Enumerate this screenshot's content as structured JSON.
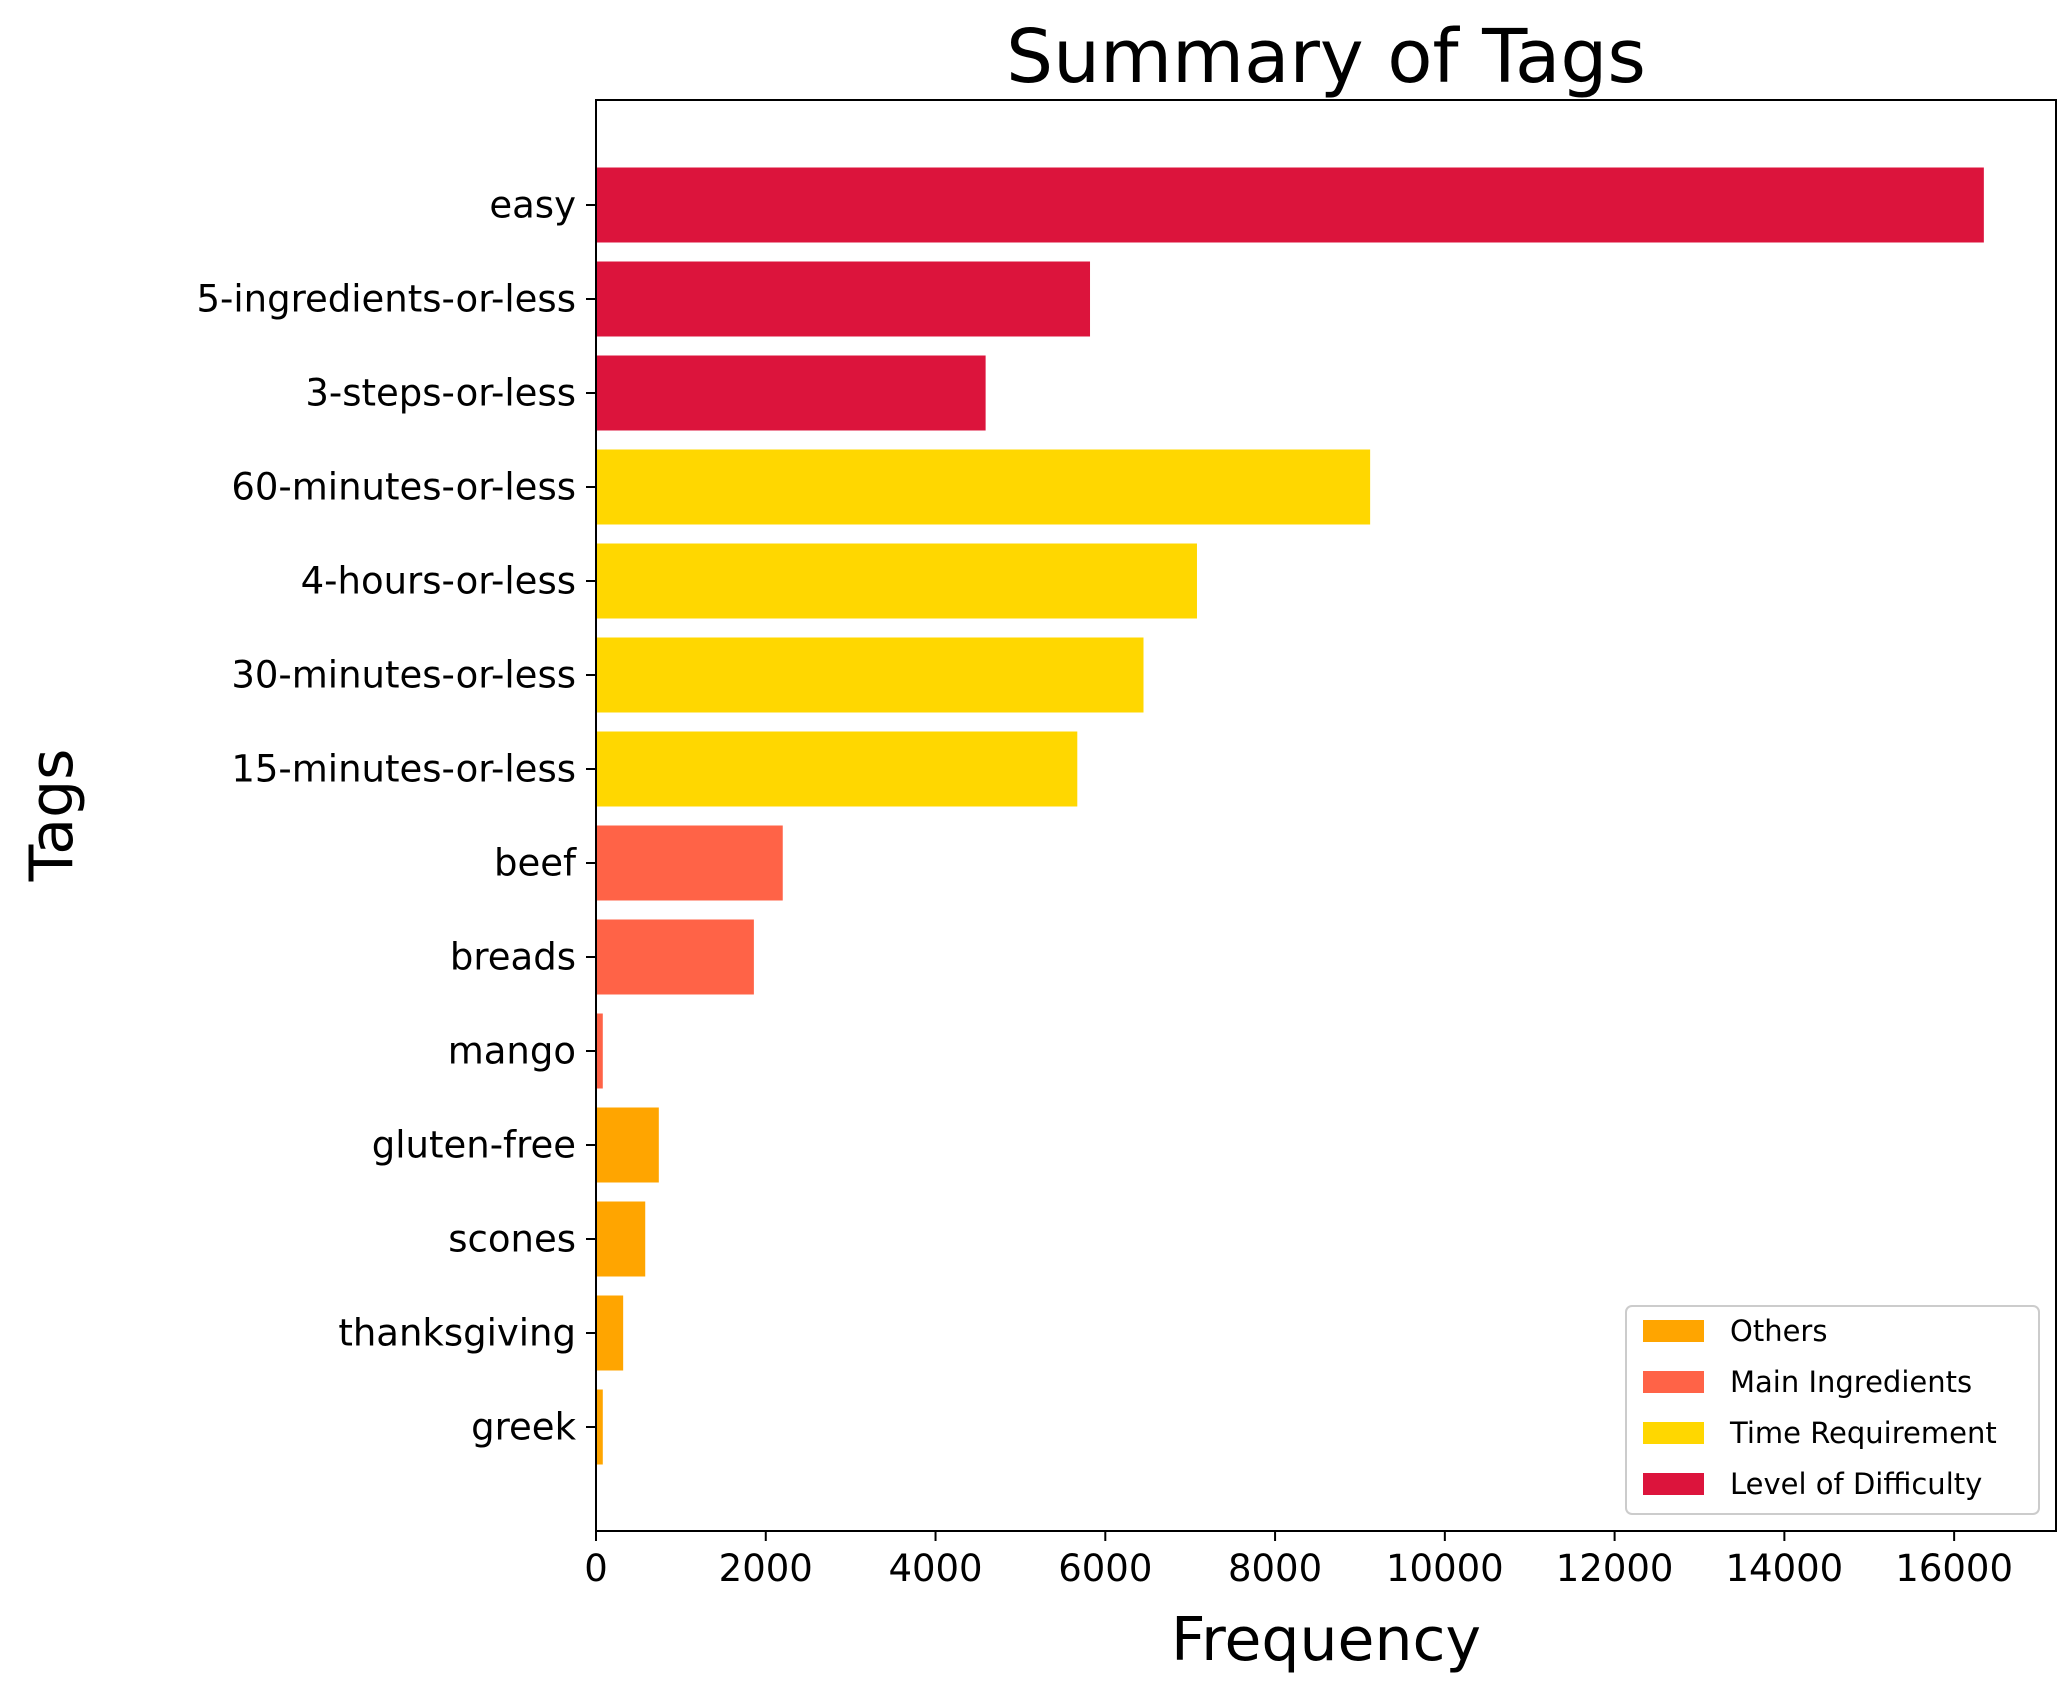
{
  "chart_data": {
    "type": "bar",
    "orientation": "horizontal",
    "title": "Summary of Tags",
    "xlabel": "Frequency",
    "ylabel": "Tags",
    "xlim": [
      0,
      17200
    ],
    "xticks": [
      0,
      2000,
      4000,
      6000,
      8000,
      10000,
      12000,
      14000,
      16000
    ],
    "grid": false,
    "legend_position": "bottom-right",
    "groups": [
      {
        "name": "Others",
        "color": "#FFA500"
      },
      {
        "name": "Main Ingredients",
        "color": "#FF6347"
      },
      {
        "name": "Time Requirement",
        "color": "#FFD700"
      },
      {
        "name": "Level of Difficulty",
        "color": "#DC143C"
      }
    ],
    "bars": [
      {
        "label": "easy",
        "value": 16350,
        "group": "Level of Difficulty"
      },
      {
        "label": "5-ingredients-or-less",
        "value": 5820,
        "group": "Level of Difficulty"
      },
      {
        "label": "3-steps-or-less",
        "value": 4590,
        "group": "Level of Difficulty"
      },
      {
        "label": "60-minutes-or-less",
        "value": 9120,
        "group": "Time Requirement"
      },
      {
        "label": "4-hours-or-less",
        "value": 7080,
        "group": "Time Requirement"
      },
      {
        "label": "30-minutes-or-less",
        "value": 6450,
        "group": "Time Requirement"
      },
      {
        "label": "15-minutes-or-less",
        "value": 5670,
        "group": "Time Requirement"
      },
      {
        "label": "beef",
        "value": 2200,
        "group": "Main Ingredients"
      },
      {
        "label": "breads",
        "value": 1860,
        "group": "Main Ingredients"
      },
      {
        "label": "mango",
        "value": 80,
        "group": "Main Ingredients"
      },
      {
        "label": "gluten-free",
        "value": 740,
        "group": "Others"
      },
      {
        "label": "scones",
        "value": 580,
        "group": "Others"
      },
      {
        "label": "thanksgiving",
        "value": 320,
        "group": "Others"
      },
      {
        "label": "greek",
        "value": 80,
        "group": "Others"
      }
    ]
  }
}
